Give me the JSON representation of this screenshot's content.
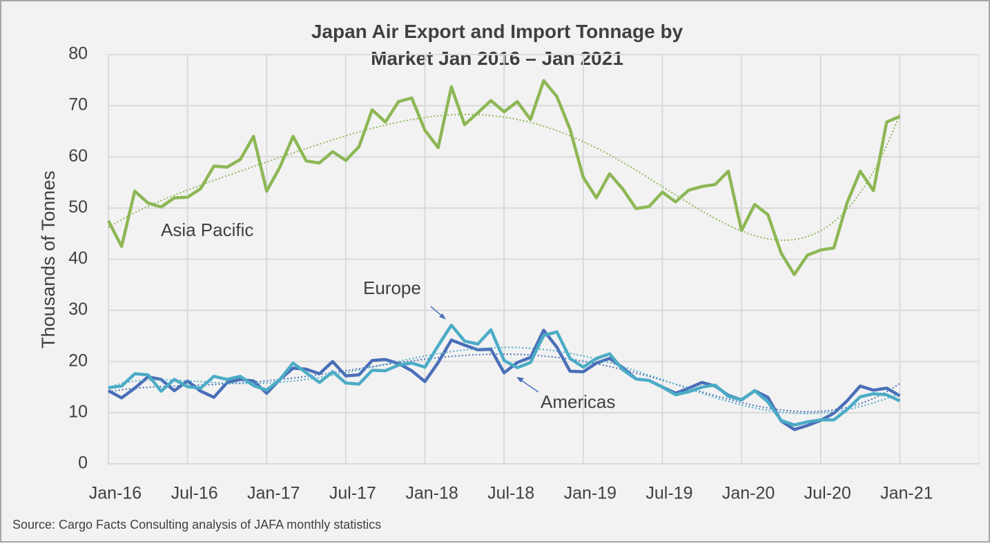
{
  "chart_data": {
    "type": "line",
    "title": "Japan Air Export and Import Tonnage by Market Jan 2016 – Jan 2021",
    "y_label": "Thousands of Tonnes",
    "source": "Source: Cargo Facts Consulting analysis of JAFA monthly statistics",
    "categories": [
      "Jan-16",
      null,
      null,
      null,
      null,
      null,
      "Jul-16",
      null,
      null,
      null,
      null,
      null,
      "Jan-17",
      null,
      null,
      null,
      null,
      null,
      "Jul-17",
      null,
      null,
      null,
      null,
      null,
      "Jan-18",
      null,
      null,
      null,
      null,
      null,
      "Jul-18",
      null,
      null,
      null,
      null,
      null,
      "Jan-19",
      null,
      null,
      null,
      null,
      null,
      "Jul-19",
      null,
      null,
      null,
      null,
      null,
      "Jan-20",
      null,
      null,
      null,
      null,
      null,
      "Jul-20",
      null,
      null,
      null,
      null,
      null,
      "Jan-21"
    ],
    "series": [
      {
        "name": "Asia Pacific",
        "color": "#8db755",
        "values": [
          47.5,
          42.5,
          53.3,
          51,
          50.2,
          52,
          52.1,
          53.8,
          58.2,
          58,
          59.5,
          64,
          53.3,
          58,
          64,
          59.2,
          58.8,
          61,
          59.3,
          62,
          69.2,
          66.8,
          70.8,
          71.5,
          65.2,
          61.8,
          73.7,
          66.3,
          68.6,
          71,
          68.8,
          70.8,
          67.3,
          74.9,
          71.8,
          65.4,
          56,
          52,
          56.7,
          53.7,
          49.9,
          50.3,
          53.1,
          51.2,
          53.5,
          54.2,
          54.6,
          57.2,
          45.6,
          50.7,
          48.7,
          41.2,
          37,
          40.8,
          41.8,
          42.2,
          51,
          57.2,
          53.4,
          66.8,
          67.9
        ]
      },
      {
        "name": "Americas",
        "color": "#4a6fb8",
        "values": [
          14.3,
          12.9,
          14.8,
          17,
          16.5,
          14.3,
          16.2,
          14.2,
          13,
          15.9,
          16.5,
          16.2,
          13.8,
          16.5,
          18.7,
          18.5,
          17.6,
          20,
          17.2,
          17.4,
          20.2,
          20.4,
          19.6,
          18.2,
          16.1,
          19.8,
          24.2,
          23.2,
          22.3,
          22.4,
          17.8,
          19.8,
          20.8,
          26.1,
          22.8,
          18.1,
          18,
          19.7,
          20.6,
          18.8,
          16.6,
          16.3,
          15,
          13.8,
          14.8,
          15.9,
          15.2,
          13.4,
          12.5,
          14.3,
          13,
          8.4,
          6.7,
          7.5,
          8.5,
          9.9,
          12.3,
          15.2,
          14.4,
          14.8,
          13.3
        ]
      },
      {
        "name": "Europe",
        "color": "#4bacc6",
        "values": [
          14.9,
          15.2,
          17.6,
          17.4,
          14.2,
          16.5,
          15.1,
          14.8,
          17.1,
          16.5,
          17.1,
          15.3,
          14.4,
          16.5,
          19.7,
          17.8,
          15.9,
          18,
          15.8,
          15.6,
          18.3,
          18.2,
          19.3,
          19.7,
          18.9,
          23.1,
          27.1,
          24,
          23.4,
          26.2,
          20.2,
          18.8,
          19.8,
          25.1,
          25.8,
          20.6,
          18.9,
          20.6,
          21.5,
          18.4,
          16.6,
          16.3,
          15,
          13.5,
          14.1,
          15,
          15.4,
          13.2,
          12.5,
          14.3,
          12.1,
          8.5,
          7.6,
          8.2,
          8.6,
          8.6,
          10.6,
          13.1,
          13.7,
          13.5,
          12.3
        ]
      }
    ],
    "ylim": [
      0,
      80
    ],
    "yticks": [
      0,
      10,
      20,
      30,
      40,
      50,
      60,
      70,
      80
    ],
    "grid": true,
    "trendline": "polynomial"
  }
}
